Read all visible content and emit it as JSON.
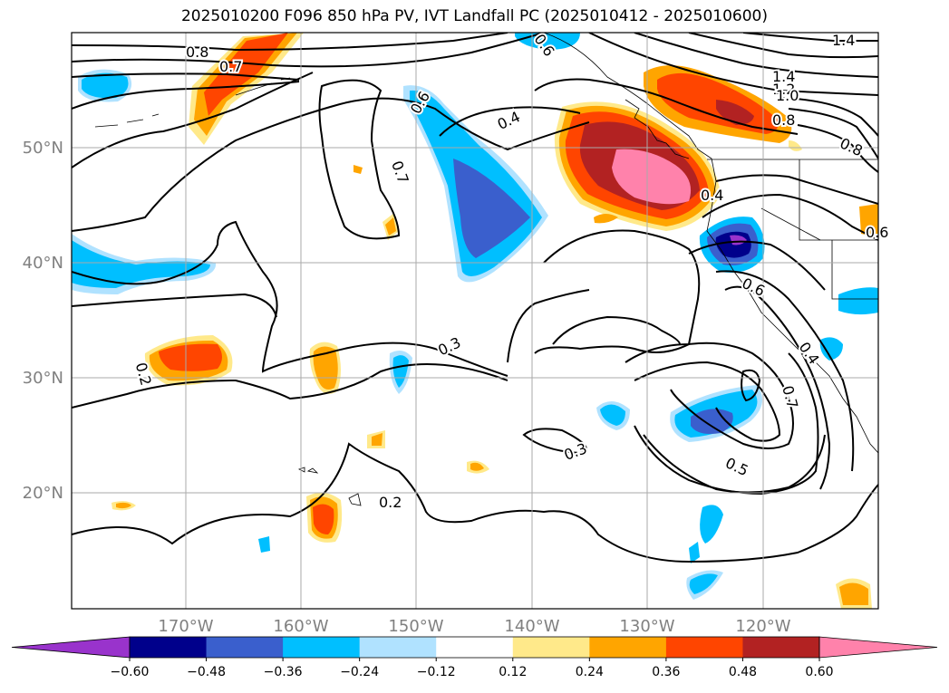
{
  "title": "2025010200 F096 850 hPa PV, IVT Landfall PC (2025010412 - 2025010600)",
  "lat_ticks": [
    "50°N",
    "40°N",
    "30°N",
    "20°N"
  ],
  "lon_ticks": [
    "170°W",
    "160°W",
    "150°W",
    "140°W",
    "130°W",
    "120°W"
  ],
  "contour_labels": [
    "0.8",
    "0.7",
    "0.6",
    "0.4",
    "0.7",
    "1.4",
    "1.4",
    "1.2",
    "1.0",
    "0.8",
    "0.8",
    "0.6",
    "0.4",
    "0.7",
    "0.5",
    "0.3",
    "0.3",
    "0.2",
    "0.2",
    "0.6",
    "0.6",
    "0.4"
  ],
  "colorbar": {
    "ticks": [
      "−0.60",
      "−0.48",
      "−0.36",
      "−0.24",
      "−0.12",
      "0.12",
      "0.24",
      "0.36",
      "0.48",
      "0.60"
    ],
    "colors": [
      "#9933cc",
      "#00008b",
      "#3a5fcd",
      "#00bfff",
      "#b0e2ff",
      "#ffffff",
      "#ffe98a",
      "#ffa500",
      "#ff4500",
      "#b22222",
      "#ff82ab"
    ]
  },
  "colors": {
    "grid": "#aaaaaa",
    "tick_label": "#808080",
    "contour": "#000000"
  }
}
